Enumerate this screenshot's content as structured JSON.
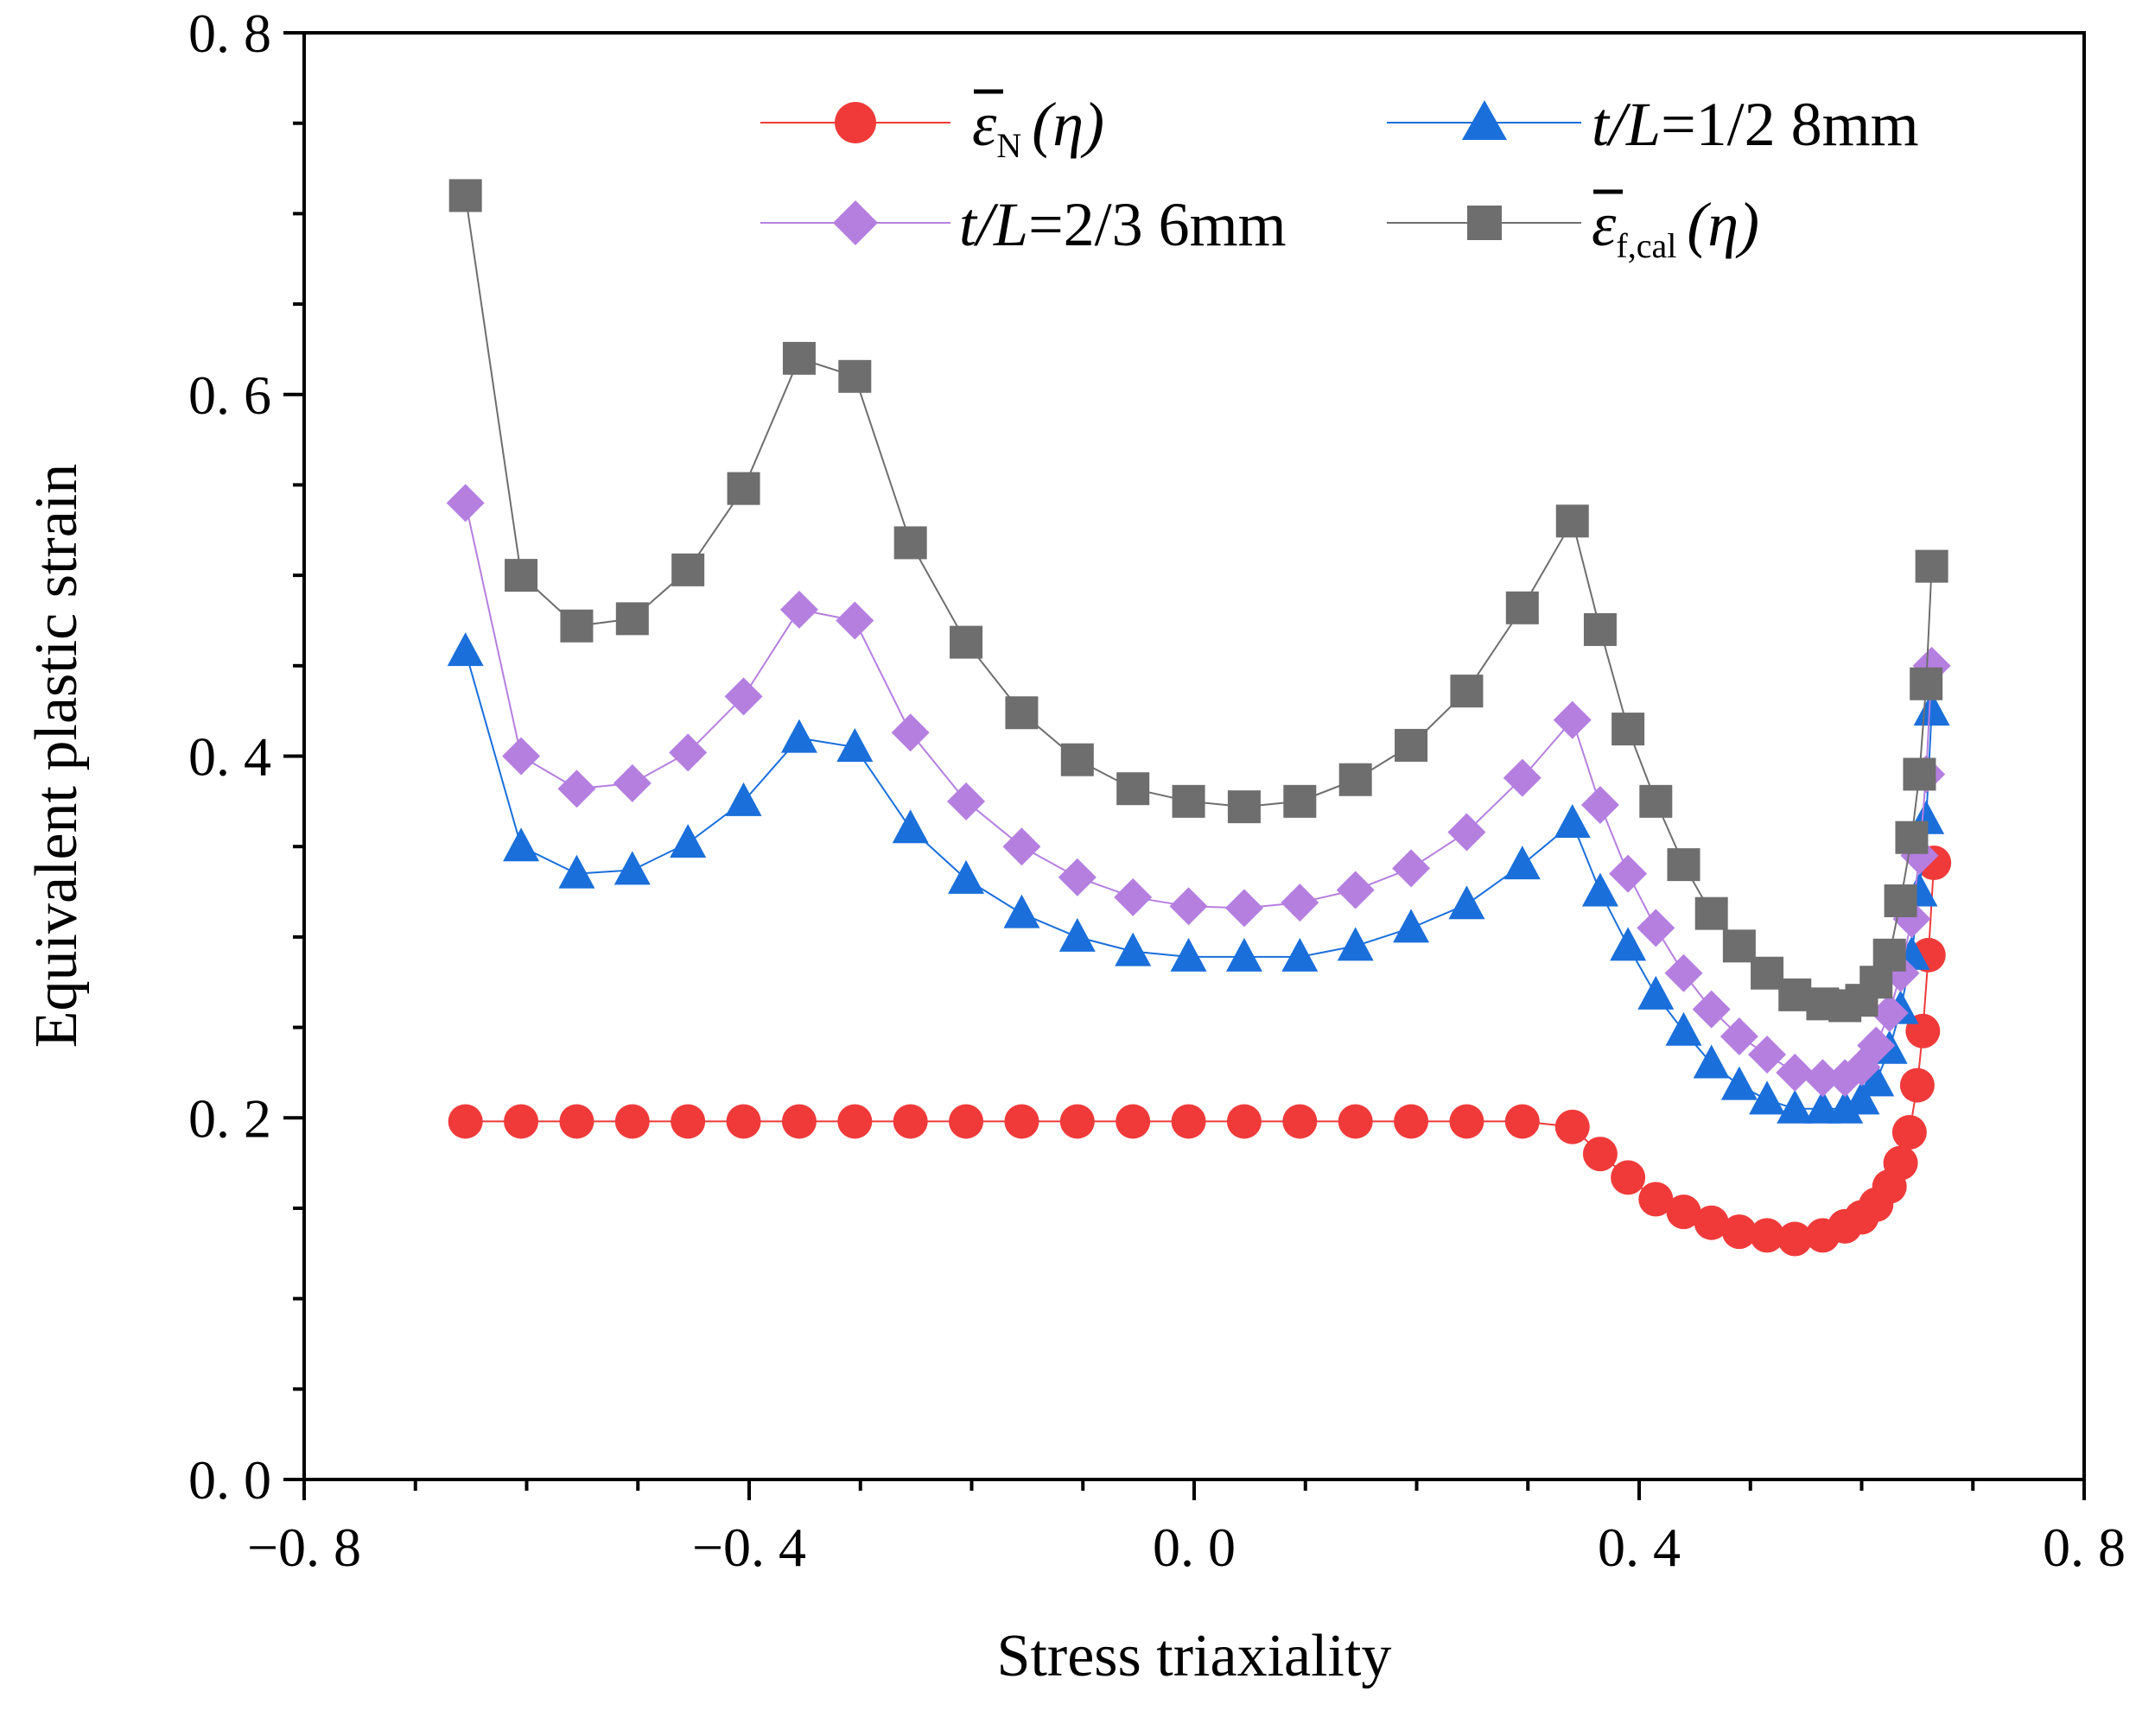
{
  "chart_data": {
    "type": "line",
    "title": "",
    "xlabel": "Stress triaxiality",
    "ylabel": "Equivalent plastic strain",
    "xlim": [
      -0.8,
      0.8
    ],
    "ylim": [
      0.0,
      0.8
    ],
    "xticks": [
      -0.8,
      -0.4,
      0.0,
      0.4,
      0.8
    ],
    "yticks": [
      0.0,
      0.2,
      0.4,
      0.6,
      0.8
    ],
    "xtick_labels": [
      "−0. 8",
      "−0. 4",
      "0. 0",
      "0. 4",
      "0. 8"
    ],
    "ytick_labels": [
      "0. 0",
      "0. 2",
      "0. 4",
      "0. 6",
      "0. 8"
    ],
    "grid": false,
    "legend_position": "top-right",
    "series": [
      {
        "name": "ε̄N(η)",
        "legend_main": "ε",
        "legend_sub": "N",
        "legend_arg": "(η)",
        "color": "#f03a3a",
        "marker": "circle",
        "x": [
          -0.655,
          -0.605,
          -0.555,
          -0.505,
          -0.455,
          -0.405,
          -0.355,
          -0.305,
          -0.255,
          -0.205,
          -0.155,
          -0.105,
          -0.055,
          -0.005,
          0.045,
          0.095,
          0.145,
          0.195,
          0.245,
          0.295,
          0.34,
          0.365,
          0.39,
          0.415,
          0.44,
          0.465,
          0.49,
          0.515,
          0.54,
          0.565,
          0.585,
          0.6,
          0.613,
          0.625,
          0.635,
          0.643,
          0.65,
          0.655,
          0.66,
          0.665
        ],
        "y": [
          0.198,
          0.198,
          0.198,
          0.198,
          0.198,
          0.198,
          0.198,
          0.198,
          0.198,
          0.198,
          0.198,
          0.198,
          0.198,
          0.198,
          0.198,
          0.198,
          0.198,
          0.198,
          0.198,
          0.198,
          0.195,
          0.18,
          0.167,
          0.155,
          0.148,
          0.142,
          0.137,
          0.135,
          0.133,
          0.135,
          0.14,
          0.145,
          0.152,
          0.162,
          0.175,
          0.192,
          0.218,
          0.248,
          0.29,
          0.341
        ]
      },
      {
        "name": "t/L=1/2 8mm",
        "legend_italic": "t/L",
        "legend_rest": "=1/2 8mm",
        "color": "#1a6fdb",
        "marker": "triangle",
        "x": [
          -0.655,
          -0.605,
          -0.555,
          -0.505,
          -0.455,
          -0.405,
          -0.355,
          -0.305,
          -0.255,
          -0.205,
          -0.155,
          -0.105,
          -0.055,
          -0.005,
          0.045,
          0.095,
          0.145,
          0.195,
          0.245,
          0.295,
          0.34,
          0.365,
          0.39,
          0.415,
          0.44,
          0.465,
          0.49,
          0.515,
          0.54,
          0.565,
          0.585,
          0.6,
          0.613,
          0.625,
          0.635,
          0.645,
          0.652,
          0.658,
          0.663
        ],
        "y": [
          0.458,
          0.35,
          0.335,
          0.337,
          0.352,
          0.375,
          0.41,
          0.405,
          0.36,
          0.332,
          0.313,
          0.3,
          0.292,
          0.289,
          0.289,
          0.289,
          0.295,
          0.305,
          0.318,
          0.34,
          0.363,
          0.325,
          0.295,
          0.268,
          0.248,
          0.23,
          0.218,
          0.21,
          0.205,
          0.205,
          0.205,
          0.21,
          0.22,
          0.238,
          0.26,
          0.29,
          0.325,
          0.365,
          0.425
        ]
      },
      {
        "name": "t/L=2/3 6mm",
        "legend_italic": "t/L",
        "legend_rest": "=2/3 6mm",
        "color": "#b57fe0",
        "marker": "diamond",
        "x": [
          -0.655,
          -0.605,
          -0.555,
          -0.505,
          -0.455,
          -0.405,
          -0.355,
          -0.305,
          -0.255,
          -0.205,
          -0.155,
          -0.105,
          -0.055,
          -0.005,
          0.045,
          0.095,
          0.145,
          0.195,
          0.245,
          0.295,
          0.34,
          0.365,
          0.39,
          0.415,
          0.44,
          0.465,
          0.49,
          0.515,
          0.54,
          0.565,
          0.585,
          0.6,
          0.613,
          0.625,
          0.635,
          0.645,
          0.652,
          0.658,
          0.663
        ],
        "y": [
          0.54,
          0.4,
          0.382,
          0.385,
          0.402,
          0.433,
          0.481,
          0.475,
          0.413,
          0.375,
          0.35,
          0.333,
          0.322,
          0.317,
          0.316,
          0.319,
          0.326,
          0.338,
          0.358,
          0.388,
          0.42,
          0.373,
          0.335,
          0.305,
          0.28,
          0.26,
          0.245,
          0.235,
          0.225,
          0.222,
          0.222,
          0.228,
          0.24,
          0.258,
          0.28,
          0.31,
          0.345,
          0.39,
          0.45
        ]
      },
      {
        "name": "ε̄f,cal(η)",
        "legend_main": "ε",
        "legend_sub": "f,cal",
        "legend_arg": "(η)",
        "color": "#6e6e6e",
        "marker": "square",
        "x": [
          -0.655,
          -0.605,
          -0.555,
          -0.505,
          -0.455,
          -0.405,
          -0.355,
          -0.305,
          -0.255,
          -0.205,
          -0.155,
          -0.105,
          -0.055,
          -0.005,
          0.045,
          0.095,
          0.145,
          0.195,
          0.245,
          0.295,
          0.34,
          0.365,
          0.39,
          0.415,
          0.44,
          0.465,
          0.49,
          0.515,
          0.54,
          0.565,
          0.585,
          0.6,
          0.613,
          0.625,
          0.635,
          0.645,
          0.652,
          0.658,
          0.663
        ],
        "y": [
          0.71,
          0.5,
          0.472,
          0.476,
          0.503,
          0.548,
          0.62,
          0.61,
          0.518,
          0.463,
          0.424,
          0.398,
          0.382,
          0.375,
          0.372,
          0.375,
          0.387,
          0.406,
          0.436,
          0.482,
          0.53,
          0.47,
          0.415,
          0.375,
          0.34,
          0.313,
          0.295,
          0.28,
          0.268,
          0.263,
          0.262,
          0.265,
          0.275,
          0.29,
          0.32,
          0.355,
          0.39,
          0.44,
          0.505
        ]
      }
    ]
  }
}
